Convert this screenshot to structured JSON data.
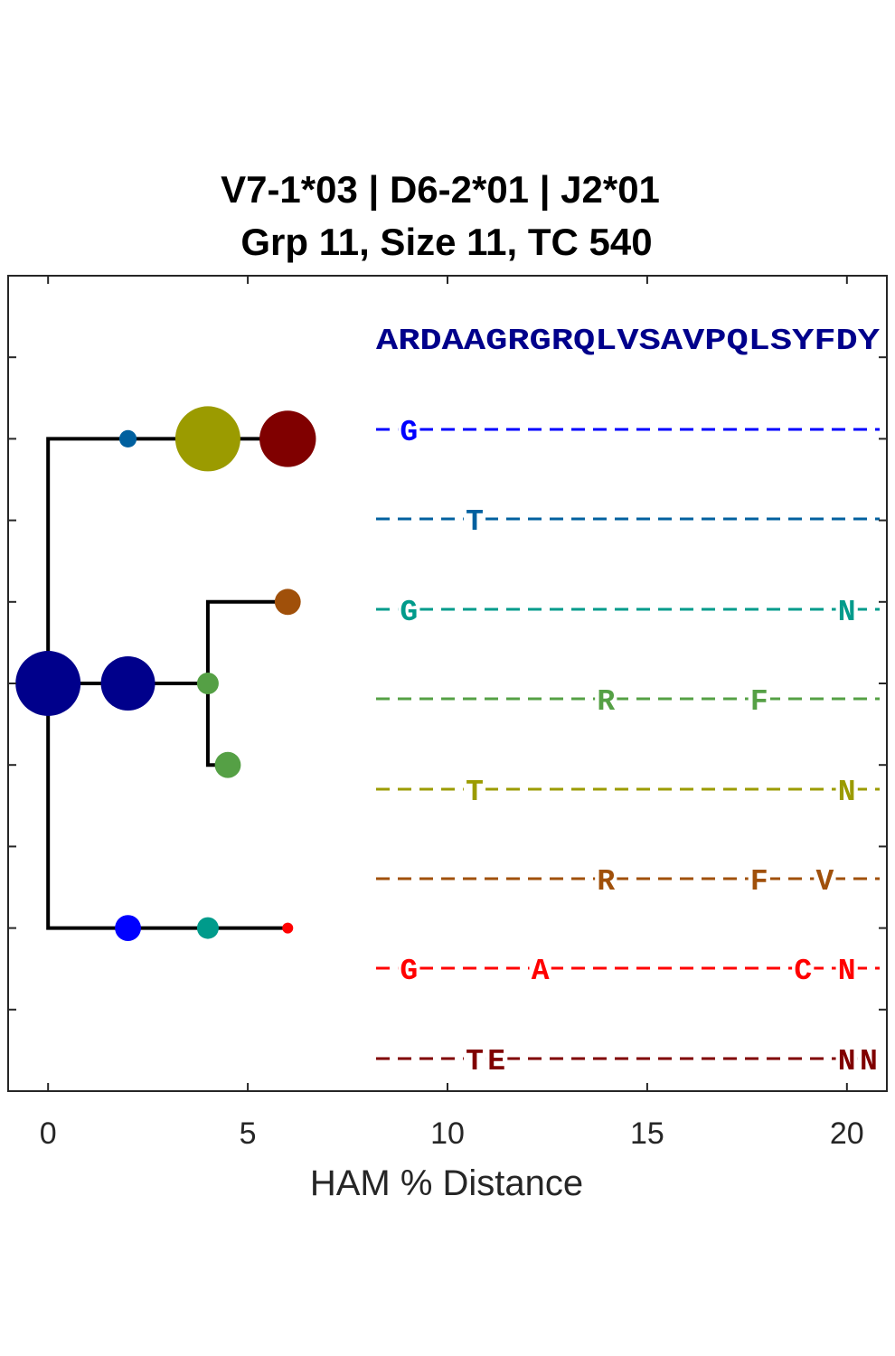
{
  "chart_data": {
    "type": "scatter",
    "title_lines": [
      "V7-1*03 | D6-2*01 | J2*01",
      "Grp 11, Size 11, TC 540"
    ],
    "xlabel": "HAM % Distance",
    "xlim": [
      -1,
      21
    ],
    "xticks": [
      0,
      5,
      10,
      15,
      20
    ],
    "xtick_labels": [
      "0",
      "5",
      "10",
      "15",
      "20"
    ],
    "ylim": [
      0,
      10
    ],
    "yticks": [
      1,
      2,
      3,
      4,
      5,
      6,
      7,
      8,
      9,
      10
    ],
    "edges": [
      {
        "points": [
          [
            0,
            5
          ],
          [
            0,
            8
          ],
          [
            6,
            8
          ]
        ]
      },
      {
        "points": [
          [
            0,
            5
          ],
          [
            4,
            5
          ]
        ]
      },
      {
        "points": [
          [
            4,
            5
          ],
          [
            4,
            6
          ],
          [
            6,
            6
          ]
        ]
      },
      {
        "points": [
          [
            4,
            5
          ],
          [
            4,
            4
          ],
          [
            4.5,
            4
          ]
        ]
      },
      {
        "points": [
          [
            0,
            5
          ],
          [
            0,
            2
          ],
          [
            6,
            2
          ]
        ]
      }
    ],
    "nodes": [
      {
        "x": 0,
        "y": 5,
        "size": 3,
        "color": "#00008b"
      },
      {
        "x": 2,
        "y": 5,
        "size": 2.5,
        "color": "#00008b"
      },
      {
        "x": 4,
        "y": 5,
        "size": 1,
        "color": "#55a045"
      },
      {
        "x": 6,
        "y": 6,
        "size": 1.2,
        "color": "#a0500a"
      },
      {
        "x": 4.5,
        "y": 4,
        "size": 1.2,
        "color": "#55a045"
      },
      {
        "x": 2,
        "y": 8,
        "size": 0.8,
        "color": "#00609f"
      },
      {
        "x": 4,
        "y": 8,
        "size": 3,
        "color": "#9b9b00"
      },
      {
        "x": 6,
        "y": 8,
        "size": 2.6,
        "color": "#800000"
      },
      {
        "x": 2,
        "y": 2,
        "size": 1.2,
        "color": "#0000ff"
      },
      {
        "x": 4,
        "y": 2,
        "size": 1,
        "color": "#009b8b"
      },
      {
        "x": 6,
        "y": 2,
        "size": 0.5,
        "color": "#ff0000"
      }
    ],
    "sequences": [
      {
        "text": "ARDAAGRGRQLVSAVPQLSYFDY",
        "color": "#00008b",
        "style": "plain"
      },
      {
        "text": "-G---------------------",
        "color": "#0000ff",
        "style": "dashed"
      },
      {
        "text": "----T------------------",
        "color": "#00609f",
        "style": "dashed"
      },
      {
        "text": "-G-------------------N-",
        "color": "#009b8b",
        "style": "dashed"
      },
      {
        "text": "----------R------F-----",
        "color": "#55a045",
        "style": "dashed"
      },
      {
        "text": "----T----------------N-",
        "color": "#9b9b00",
        "style": "dashed"
      },
      {
        "text": "----------R------F--V--",
        "color": "#a0500a",
        "style": "dashed"
      },
      {
        "text": "-G-----A-----------C-N-",
        "color": "#ff0000",
        "style": "dashed"
      },
      {
        "text": "----TE---------------NN",
        "color": "#800000",
        "style": "dashed"
      }
    ]
  }
}
